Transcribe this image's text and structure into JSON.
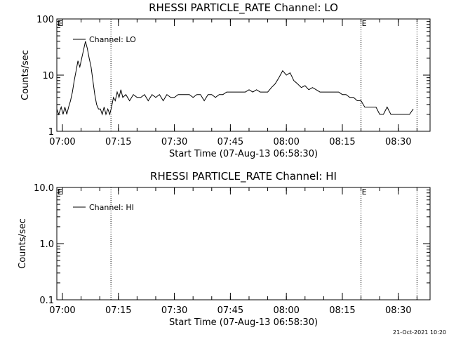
{
  "chart_data": [
    {
      "type": "line",
      "title": "RHESSI PARTICLE_RATE Channel: LO",
      "xlabel": "Start Time (07-Aug-13 06:58:30)",
      "ylabel": "Counts/sec",
      "y_scale": "log",
      "ylim": [
        1,
        100
      ],
      "y_ticks": [
        "1",
        "10",
        "100"
      ],
      "x_ticks": [
        "07:00",
        "07:15",
        "07:30",
        "07:45",
        "08:00",
        "08:15",
        "08:30"
      ],
      "xlim": [
        "06:58:30",
        "08:38:30"
      ],
      "legend": {
        "position": "top-left",
        "entries": [
          "Channel: LO"
        ]
      },
      "markers": [
        {
          "x": "07:13:00",
          "label": ""
        },
        {
          "x": "08:20:00",
          "label": "E"
        },
        {
          "x": "08:35:00",
          "label": ""
        }
      ],
      "corner_label": "E",
      "series": [
        {
          "name": "Channel: LO",
          "x": [
            "06:58:30",
            "06:59:00",
            "06:59:40",
            "07:00:10",
            "07:00:40",
            "07:01:10",
            "07:01:40",
            "07:02:10",
            "07:02:40",
            "07:03:10",
            "07:03:40",
            "07:04:10",
            "07:04:40",
            "07:05:10",
            "07:05:40",
            "07:06:10",
            "07:06:40",
            "07:07:10",
            "07:07:40",
            "07:08:10",
            "07:08:40",
            "07:09:10",
            "07:09:40",
            "07:10:10",
            "07:10:40",
            "07:11:10",
            "07:11:40",
            "07:12:10",
            "07:12:40",
            "07:13:10",
            "07:13:40",
            "07:14:10",
            "07:14:40",
            "07:15:10",
            "07:15:40",
            "07:16:10",
            "07:17:00",
            "07:18:00",
            "07:19:00",
            "07:20:00",
            "07:21:00",
            "07:22:00",
            "07:23:00",
            "07:24:00",
            "07:25:00",
            "07:26:00",
            "07:27:00",
            "07:28:00",
            "07:29:00",
            "07:30:00",
            "07:31:00",
            "07:32:00",
            "07:33:00",
            "07:34:00",
            "07:35:00",
            "07:36:00",
            "07:37:00",
            "07:38:00",
            "07:39:00",
            "07:40:00",
            "07:41:00",
            "07:42:00",
            "07:43:00",
            "07:44:00",
            "07:45:00",
            "07:46:00",
            "07:47:00",
            "07:48:00",
            "07:49:00",
            "07:50:00",
            "07:51:00",
            "07:52:00",
            "07:53:00",
            "07:54:00",
            "07:55:00",
            "07:56:00",
            "07:57:00",
            "07:58:00",
            "07:59:00",
            "08:00:00",
            "08:01:00",
            "08:02:00",
            "08:03:00",
            "08:04:00",
            "08:05:00",
            "08:06:00",
            "08:07:00",
            "08:08:00",
            "08:09:00",
            "08:10:00",
            "08:11:00",
            "08:12:00",
            "08:13:00",
            "08:14:00",
            "08:15:00",
            "08:16:00",
            "08:17:00",
            "08:18:00",
            "08:19:00",
            "08:20:00",
            "08:21:00",
            "08:22:00",
            "08:23:00",
            "08:24:00",
            "08:25:00",
            "08:26:00",
            "08:27:00",
            "08:28:00",
            "08:29:00",
            "08:30:00",
            "08:31:00",
            "08:32:00",
            "08:33:00",
            "08:34:00"
          ],
          "values": [
            2.5,
            2.0,
            2.7,
            2.0,
            2.7,
            2.0,
            2.7,
            3.5,
            5.0,
            8.0,
            12,
            18,
            14,
            20,
            28,
            40,
            30,
            20,
            14,
            8,
            4.5,
            3.0,
            2.5,
            2.5,
            2.0,
            2.7,
            2.0,
            2.5,
            2.0,
            2.7,
            4.0,
            3.5,
            5.0,
            4.0,
            5.5,
            4.0,
            4.5,
            3.5,
            4.5,
            4.0,
            4.0,
            4.5,
            3.5,
            4.5,
            4.0,
            4.5,
            3.5,
            4.5,
            4.0,
            4.0,
            4.5,
            4.5,
            4.5,
            4.5,
            4.0,
            4.5,
            4.5,
            3.5,
            4.5,
            4.5,
            4.0,
            4.5,
            4.5,
            5.0,
            5.0,
            5.0,
            5.0,
            5.0,
            5.0,
            5.5,
            5.0,
            5.5,
            5.0,
            5.0,
            5.0,
            6.0,
            7.0,
            9.0,
            12,
            10,
            11,
            8.0,
            7.0,
            6.0,
            6.5,
            5.5,
            6.0,
            5.5,
            5.0,
            5.0,
            5.0,
            5.0,
            5.0,
            5.0,
            4.5,
            4.5,
            4.0,
            4.0,
            3.5,
            3.5,
            2.7,
            2.7,
            2.7,
            2.7,
            2.0,
            2.0,
            2.7,
            2.0,
            2.0,
            2.0,
            2.0,
            2.0,
            2.0,
            2.5
          ]
        }
      ]
    },
    {
      "type": "line",
      "title": "RHESSI PARTICLE_RATE Channel: HI",
      "xlabel": "Start Time (07-Aug-13 06:58:30)",
      "ylabel": "Counts/sec",
      "y_scale": "log",
      "ylim": [
        0.1,
        10
      ],
      "y_ticks": [
        "0.1",
        "1.0",
        "10.0"
      ],
      "x_ticks": [
        "07:00",
        "07:15",
        "07:30",
        "07:45",
        "08:00",
        "08:15",
        "08:30"
      ],
      "xlim": [
        "06:58:30",
        "08:38:30"
      ],
      "legend": {
        "position": "top-left",
        "entries": [
          "Channel: HI"
        ]
      },
      "markers": [
        {
          "x": "07:13:00",
          "label": ""
        },
        {
          "x": "08:20:00",
          "label": "E"
        },
        {
          "x": "08:35:00",
          "label": ""
        }
      ],
      "corner_label": "E",
      "series": [
        {
          "name": "Channel: HI",
          "x": [],
          "values": []
        }
      ]
    }
  ],
  "footer": {
    "timestamp": "21-Oct-2021 10:20"
  }
}
